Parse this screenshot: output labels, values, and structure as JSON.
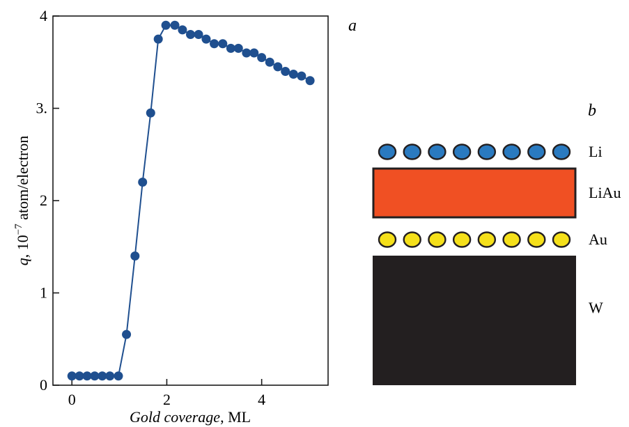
{
  "chart_data": {
    "type": "scatter",
    "panel_label": "a",
    "xlabel_italic": "Gold coverage",
    "xlabel_unit": ", ML",
    "ylabel_symbol": "q",
    "ylabel_prefix": ", 10",
    "ylabel_exponent": "−7",
    "ylabel_suffix": " atom/electron",
    "xlim": [
      -0.4,
      5.4
    ],
    "ylim": [
      0,
      4
    ],
    "x_ticks": [
      0,
      2,
      4
    ],
    "x_tick_labels": [
      "0",
      "2",
      "4"
    ],
    "y_ticks": [
      0,
      1,
      2,
      3,
      4
    ],
    "y_tick_labels": [
      "0",
      "1",
      "2",
      "3.",
      "4"
    ],
    "series": [
      {
        "line": true,
        "x": [
          0.0,
          0.16,
          0.32,
          0.48,
          0.64,
          0.8,
          0.98,
          1.15,
          1.33,
          1.49,
          1.66,
          1.82,
          1.98,
          2.17,
          2.33,
          2.5,
          2.67,
          2.83,
          3.0,
          3.18,
          3.35,
          3.51,
          3.68,
          3.84,
          4.0,
          4.17,
          4.34,
          4.5,
          4.67,
          4.84,
          5.02
        ],
        "y": [
          0.1,
          0.1,
          0.1,
          0.1,
          0.1,
          0.1,
          0.1,
          0.55,
          1.4,
          2.2,
          2.95,
          3.75,
          3.9,
          3.9,
          3.85,
          3.8,
          3.8,
          3.75,
          3.7,
          3.7,
          3.65,
          3.65,
          3.6,
          3.6,
          3.55,
          3.5,
          3.45,
          3.4,
          3.37,
          3.35,
          3.3
        ]
      }
    ]
  },
  "schematic": {
    "panel_label": "b",
    "layers": [
      {
        "label": "Li",
        "kind": "atoms",
        "count": 8,
        "color": "#2a7ac0"
      },
      {
        "label": "LiAu",
        "kind": "slab",
        "color": "#f05023"
      },
      {
        "label": "Au",
        "kind": "atoms",
        "count": 8,
        "color": "#f5e01a"
      },
      {
        "label": "W",
        "kind": "slab",
        "color": "#231f20"
      }
    ]
  },
  "colors": {
    "marker": "#1f4f8f",
    "axis": "#1a1a1a"
  }
}
